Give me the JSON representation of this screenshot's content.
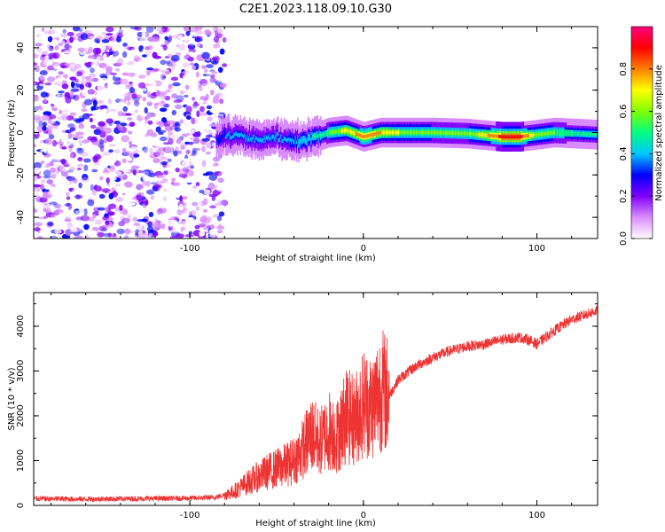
{
  "title": "C2E1.2023.118.09.10.G30",
  "chart_data": [
    {
      "type": "heatmap",
      "xlabel": "Height of straight line (km)",
      "ylabel": "Frequency (Hz)",
      "xlim": [
        -190,
        135
      ],
      "ylim": [
        -50,
        50
      ],
      "xticks": [
        -100,
        0,
        100
      ],
      "yticks": [
        -40,
        -20,
        0,
        20,
        40
      ],
      "colorbar": {
        "label": "Normalized spectral amplitude",
        "range": [
          0,
          1
        ],
        "ticks": [
          "0.0",
          "0.2",
          "0.4",
          "0.6",
          "0.8"
        ],
        "stops": [
          "#ffffff",
          "#d98cff",
          "#8000ff",
          "#0000ff",
          "#00c8ff",
          "#00ff80",
          "#80ff00",
          "#ffff00",
          "#ff8000",
          "#ff0000",
          "#ff0080"
        ]
      },
      "noise_region_x": [
        -190,
        -80
      ],
      "ridge": [
        {
          "x": -85,
          "y": -3,
          "amp": 0.3
        },
        {
          "x": -80,
          "y": -1,
          "amp": 0.35
        },
        {
          "x": -70,
          "y": -2,
          "amp": 0.35
        },
        {
          "x": -60,
          "y": -3,
          "amp": 0.35
        },
        {
          "x": -50,
          "y": -2,
          "amp": 0.35
        },
        {
          "x": -40,
          "y": -4,
          "amp": 0.4
        },
        {
          "x": -30,
          "y": -3,
          "amp": 0.45
        },
        {
          "x": -20,
          "y": 0,
          "amp": 0.55
        },
        {
          "x": -10,
          "y": 1,
          "amp": 0.7
        },
        {
          "x": 0,
          "y": -2,
          "amp": 0.8
        },
        {
          "x": 10,
          "y": 0,
          "amp": 0.75
        },
        {
          "x": 20,
          "y": 0,
          "amp": 0.65
        },
        {
          "x": 40,
          "y": 0,
          "amp": 0.55
        },
        {
          "x": 60,
          "y": -0.5,
          "amp": 0.55
        },
        {
          "x": 80,
          "y": -2,
          "amp": 0.9
        },
        {
          "x": 90,
          "y": -2,
          "amp": 0.9
        },
        {
          "x": 100,
          "y": -1,
          "amp": 0.6
        },
        {
          "x": 110,
          "y": 0,
          "amp": 0.55
        },
        {
          "x": 135,
          "y": -1,
          "amp": 0.5
        }
      ]
    },
    {
      "type": "line",
      "xlabel": "Height of straight line (km)",
      "ylabel": "SNR (10 * v/v)",
      "xlim": [
        -190,
        135
      ],
      "ylim": [
        0,
        4750
      ],
      "xticks": [
        -100,
        0,
        100
      ],
      "yticks": [
        0,
        1000,
        2000,
        3000,
        4000
      ],
      "color": "#ee3333",
      "series": [
        {
          "x": [
            -190,
            -160,
            -130,
            -100,
            -85,
            -75,
            -65,
            -55,
            -45,
            -40,
            -35,
            -30,
            -25,
            -20,
            -15,
            -10,
            -5,
            0,
            5,
            10,
            15,
            20,
            30,
            40,
            50,
            60,
            70,
            80,
            90,
            95,
            100,
            110,
            120,
            135
          ],
          "y": [
            150,
            140,
            150,
            160,
            180,
            300,
            550,
            750,
            900,
            1000,
            1250,
            1600,
            1400,
            1700,
            1550,
            2000,
            1900,
            2300,
            2200,
            2600,
            2450,
            2800,
            3100,
            3300,
            3450,
            3550,
            3600,
            3700,
            3750,
            3700,
            3600,
            3900,
            4150,
            4350
          ]
        }
      ]
    }
  ]
}
